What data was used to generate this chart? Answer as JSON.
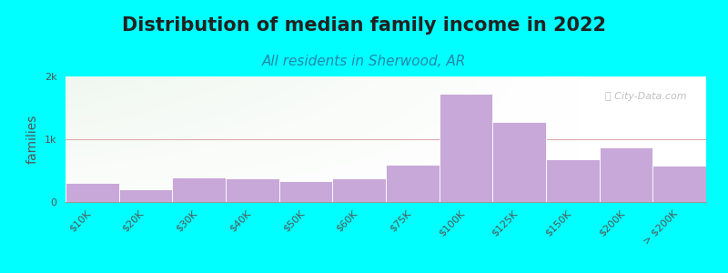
{
  "title": "Distribution of median family income in 2022",
  "subtitle": "All residents in Sherwood, AR",
  "ylabel": "families",
  "background_color": "#00FFFF",
  "bar_color": "#c8a8d8",
  "bar_edge_color": "#ffffff",
  "watermark": "ⓘ City-Data.com",
  "categories": [
    "$10K",
    "$20K",
    "$30K",
    "$40K",
    "$50K",
    "$60K",
    "$75K",
    "$100K",
    "$125K",
    "$150K",
    "$200K",
    "> $200K"
  ],
  "values": [
    310,
    210,
    390,
    370,
    340,
    380,
    590,
    1730,
    1270,
    680,
    870,
    580
  ],
  "ylim": [
    0,
    2000
  ],
  "yticks": [
    0,
    1000,
    2000
  ],
  "ytick_labels": [
    "0",
    "1k",
    "2k"
  ],
  "grid_color": "#ddaaaa",
  "title_fontsize": 15,
  "subtitle_fontsize": 11,
  "ylabel_fontsize": 10,
  "tick_fontsize": 8
}
